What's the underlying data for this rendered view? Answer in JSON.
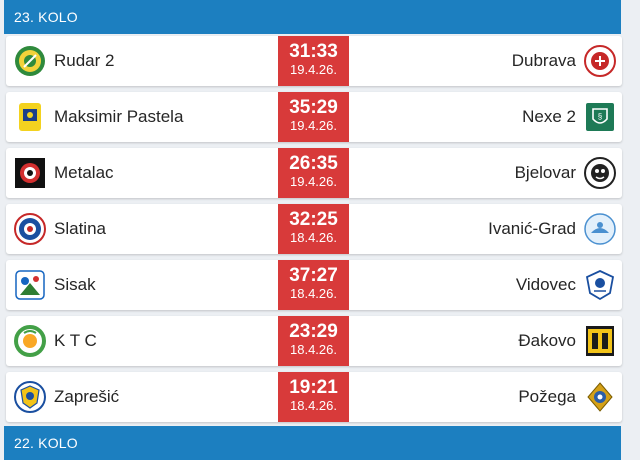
{
  "round": {
    "title": "23. KOLO"
  },
  "next_round": {
    "title": "22. KOLO"
  },
  "matches": [
    {
      "home": "Rudar 2",
      "away": "Dubrava",
      "score": "31:33",
      "date": "19.4.26.",
      "home_icon": "rudar-crest-icon",
      "away_icon": "dubrava-crest-icon"
    },
    {
      "home": "Maksimir Pastela",
      "away": "Nexe 2",
      "score": "35:29",
      "date": "19.4.26.",
      "home_icon": "maksimir-crest-icon",
      "away_icon": "nexe-crest-icon"
    },
    {
      "home": "Metalac",
      "away": "Bjelovar",
      "score": "26:35",
      "date": "19.4.26.",
      "home_icon": "metalac-crest-icon",
      "away_icon": "bjelovar-crest-icon"
    },
    {
      "home": "Slatina",
      "away": "Ivanić-Grad",
      "score": "32:25",
      "date": "18.4.26.",
      "home_icon": "slatina-crest-icon",
      "away_icon": "ivanic-grad-crest-icon"
    },
    {
      "home": "Sisak",
      "away": "Vidovec",
      "score": "37:27",
      "date": "18.4.26.",
      "home_icon": "sisak-crest-icon",
      "away_icon": "vidovec-crest-icon"
    },
    {
      "home": "K T C",
      "away": "Đakovo",
      "score": "23:29",
      "date": "18.4.26.",
      "home_icon": "ktc-crest-icon",
      "away_icon": "dakovo-crest-icon"
    },
    {
      "home": "Zaprešić",
      "away": "Požega",
      "score": "19:21",
      "date": "18.4.26.",
      "home_icon": "zapresic-crest-icon",
      "away_icon": "pozega-crest-icon"
    }
  ],
  "colors": {
    "header": "#1c7fc0",
    "score_box": "#d83a3a",
    "background": "#eceff3"
  }
}
